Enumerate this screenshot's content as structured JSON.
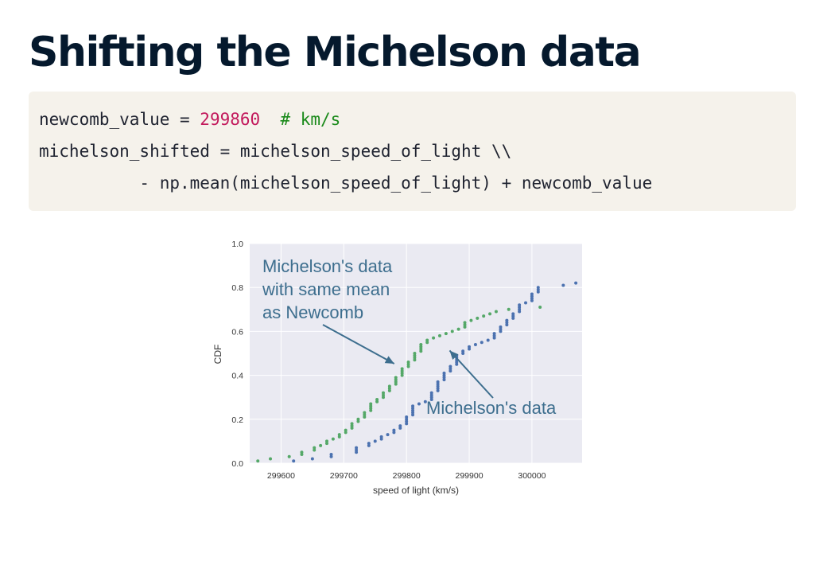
{
  "title": "Shifting the Michelson data",
  "code": {
    "lines": [
      [
        {
          "text": "newcomb_value = ",
          "kind": "plain"
        },
        {
          "text": "299860",
          "kind": "number"
        },
        {
          "text": "  # km/s",
          "kind": "comment"
        }
      ],
      [
        {
          "text": "michelson_shifted = michelson_speed_of_light \\\\",
          "kind": "plain"
        }
      ],
      [
        {
          "text": "          - np.mean(michelson_speed_of_light) + newcomb_value",
          "kind": "plain"
        }
      ]
    ],
    "colors": {
      "plain": "#1f2330",
      "number": "#c2185b",
      "comment": "#1a8a1a"
    }
  },
  "chart_data": {
    "type": "scatter",
    "xlabel": "speed of light (km/s)",
    "ylabel": "CDF",
    "xlim": [
      299550,
      300080
    ],
    "ylim": [
      0.0,
      1.0
    ],
    "xticks": [
      299600,
      299700,
      299800,
      299900,
      300000
    ],
    "yticks": [
      0.0,
      0.2,
      0.4,
      0.6,
      0.8,
      1.0
    ],
    "grid": true,
    "style": {
      "background": "#eaeaf2",
      "grid_color": "#ffffff"
    },
    "series": [
      {
        "color": "#4c72b0",
        "x": [
          299620,
          299650,
          299680,
          299680,
          299720,
          299720,
          299720,
          299740,
          299740,
          299750,
          299760,
          299760,
          299770,
          299780,
          299780,
          299790,
          299790,
          299800,
          299800,
          299800,
          299800,
          299810,
          299810,
          299810,
          299810,
          299810,
          299820,
          299830,
          299840,
          299840,
          299840,
          299840,
          299850,
          299850,
          299850,
          299850,
          299850,
          299860,
          299860,
          299860,
          299860,
          299870,
          299870,
          299870,
          299880,
          299880,
          299880,
          299880,
          299880,
          299890,
          299890,
          299900,
          299900,
          299910,
          299920,
          299930,
          299940,
          299940,
          299940,
          299950,
          299950,
          299950,
          299960,
          299960,
          299960,
          299970,
          299970,
          299970,
          299980,
          299980,
          299980,
          299980,
          299990,
          300000,
          300000,
          300000,
          300000,
          300010,
          300010,
          300010,
          300050,
          300070
        ],
        "y": [
          0.01,
          0.02,
          0.03,
          0.04,
          0.05,
          0.06,
          0.07,
          0.08,
          0.09,
          0.1,
          0.11,
          0.12,
          0.13,
          0.14,
          0.15,
          0.16,
          0.17,
          0.18,
          0.19,
          0.2,
          0.21,
          0.22,
          0.23,
          0.24,
          0.25,
          0.26,
          0.27,
          0.28,
          0.29,
          0.3,
          0.31,
          0.32,
          0.33,
          0.34,
          0.35,
          0.36,
          0.37,
          0.38,
          0.39,
          0.4,
          0.41,
          0.42,
          0.43,
          0.44,
          0.45,
          0.46,
          0.47,
          0.48,
          0.49,
          0.5,
          0.51,
          0.52,
          0.53,
          0.54,
          0.55,
          0.56,
          0.57,
          0.58,
          0.59,
          0.6,
          0.61,
          0.62,
          0.63,
          0.64,
          0.65,
          0.66,
          0.67,
          0.68,
          0.69,
          0.7,
          0.71,
          0.72,
          0.73,
          0.74,
          0.75,
          0.76,
          0.77,
          0.78,
          0.79,
          0.8,
          0.81,
          0.82
        ]
      },
      {
        "color": "#55a868",
        "x": [
          299563,
          299583,
          299613,
          299633,
          299633,
          299653,
          299653,
          299663,
          299673,
          299673,
          299683,
          299693,
          299693,
          299703,
          299703,
          299713,
          299713,
          299713,
          299723,
          299723,
          299733,
          299733,
          299733,
          299743,
          299743,
          299743,
          299743,
          299753,
          299753,
          299763,
          299763,
          299763,
          299773,
          299773,
          299773,
          299783,
          299783,
          299783,
          299783,
          299793,
          299793,
          299793,
          299793,
          299803,
          299803,
          299803,
          299813,
          299813,
          299813,
          299813,
          299823,
          299823,
          299823,
          299823,
          299833,
          299833,
          299843,
          299853,
          299863,
          299873,
          299883,
          299893,
          299893,
          299893,
          299903,
          299913,
          299923,
          299933,
          299943,
          299963,
          300013
        ],
        "y": [
          0.01,
          0.02,
          0.03,
          0.04,
          0.05,
          0.06,
          0.07,
          0.08,
          0.09,
          0.1,
          0.11,
          0.12,
          0.13,
          0.14,
          0.15,
          0.16,
          0.17,
          0.18,
          0.19,
          0.2,
          0.21,
          0.22,
          0.23,
          0.24,
          0.25,
          0.26,
          0.27,
          0.28,
          0.29,
          0.3,
          0.31,
          0.32,
          0.33,
          0.34,
          0.35,
          0.36,
          0.37,
          0.38,
          0.39,
          0.4,
          0.41,
          0.42,
          0.43,
          0.44,
          0.45,
          0.46,
          0.47,
          0.48,
          0.49,
          0.5,
          0.51,
          0.52,
          0.53,
          0.54,
          0.55,
          0.56,
          0.57,
          0.58,
          0.59,
          0.6,
          0.61,
          0.62,
          0.63,
          0.64,
          0.65,
          0.66,
          0.67,
          0.68,
          0.69,
          0.7,
          0.71
        ]
      }
    ],
    "annotations": [
      {
        "text": [
          "Michelson's data",
          "with same mean",
          "as Newcomb"
        ],
        "arrow_to": {
          "x": 299783,
          "y": 0.46
        },
        "color": "#3d6e8e"
      },
      {
        "text": [
          "Michelson's data"
        ],
        "arrow_to": {
          "x": 299865,
          "y": 0.52
        },
        "color": "#3d6e8e"
      }
    ]
  }
}
